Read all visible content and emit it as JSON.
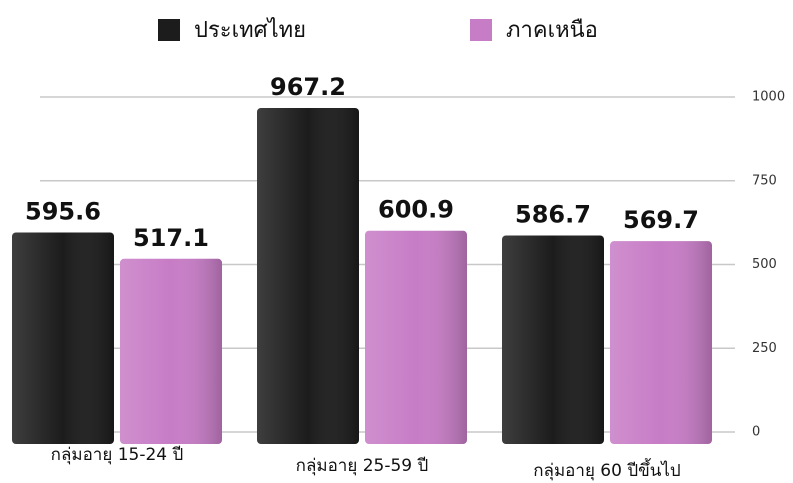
{
  "chart_data": {
    "type": "bar",
    "categories": [
      "กลุ่มอายุ 15-24 ปี",
      "กลุ่มอายุ 25-59 ปี",
      "กลุ่มอายุ 60 ปีขึ้นไป"
    ],
    "series": [
      {
        "name": "ประเทศไทย",
        "color": "#1c1c1c",
        "values": [
          595.6,
          967.2,
          586.7
        ]
      },
      {
        "name": "ภาคเหนือ",
        "color": "#c77cc6",
        "values": [
          517.1,
          600.9,
          569.7
        ]
      }
    ],
    "ylim": [
      0,
      1000
    ],
    "yticks": [
      0,
      250,
      500,
      750,
      1000
    ],
    "grid": true,
    "legend": "top"
  }
}
